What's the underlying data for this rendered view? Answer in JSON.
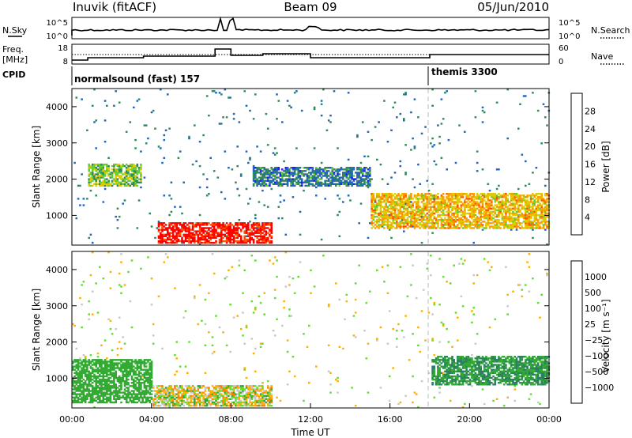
{
  "header": {
    "station": "Inuvik (fitACF)",
    "beam": "Beam 09",
    "date": "05/Jun/2010"
  },
  "top_panels": {
    "nsky_label": "N.Sky",
    "nsearch_label": "N.Search",
    "freq_label_1": "Freq.",
    "freq_label_2": "[MHz]",
    "nave_label": "Nave",
    "cpid_label": "CPID",
    "nsky_ticks": [
      "10^5",
      "10^0"
    ],
    "nsearch_ticks": [
      "10^5",
      "10^0"
    ],
    "freq_ticks": [
      "18",
      "8"
    ],
    "nave_ticks": [
      "60",
      "0"
    ],
    "cpid_segments": [
      {
        "name": "normalsound (fast) 157",
        "start_hour": 0
      },
      {
        "name": "themis 3300",
        "start_hour": 18
      }
    ]
  },
  "chart_data": [
    {
      "type": "heatmap",
      "quantity": "Power",
      "xlabel": "",
      "ylabel": "Slant Range [km]",
      "xlim": [
        0,
        24
      ],
      "ylim": [
        180,
        4500
      ],
      "yticks": [
        "1000",
        "2000",
        "3000",
        "4000"
      ],
      "colorbar": {
        "label": "Power [dB]",
        "ticks": [
          "4",
          "8",
          "12",
          "16",
          "20",
          "24",
          "28"
        ],
        "colors": [
          "#1a1aff",
          "#2266bb",
          "#2e8b57",
          "#66cc33",
          "#ddcc00",
          "#ff9900",
          "#ff5500",
          "#ff0000"
        ]
      },
      "dominant_features": [
        {
          "description": "strong near-range echo",
          "start_hour": 4.3,
          "end_hour": 10,
          "range_km": [
            200,
            800
          ],
          "power_db": 30
        },
        {
          "description": "band",
          "start_hour": 0.8,
          "end_hour": 3.5,
          "range_km": [
            1800,
            2400
          ],
          "power_db": 14
        },
        {
          "description": "band",
          "start_hour": 9,
          "end_hour": 15,
          "range_km": [
            1800,
            2300
          ],
          "power_db": 8
        },
        {
          "description": "band",
          "start_hour": 15,
          "end_hour": 24,
          "range_km": [
            600,
            1600
          ],
          "power_db": 20
        }
      ]
    },
    {
      "type": "heatmap",
      "quantity": "Velocity",
      "xlabel": "Time UT",
      "ylabel": "Slant Range [km]",
      "xlim": [
        0,
        24
      ],
      "ylim": [
        180,
        4500
      ],
      "xticks": [
        "00:00",
        "04:00",
        "08:00",
        "12:00",
        "16:00",
        "20:00",
        "00:00"
      ],
      "yticks": [
        "1000",
        "2000",
        "3000",
        "4000"
      ],
      "colorbar": {
        "label": "Velocity [m s⁻¹]",
        "ticks": [
          "1000",
          "500",
          "100",
          "25",
          "−25",
          "−100",
          "−500",
          "−1000"
        ],
        "colors": [
          "#1a3fd0",
          "#2a8060",
          "#33aa33",
          "#66dd33",
          "#c8c8c8",
          "#ffb000",
          "#ff8000",
          "#ff5000",
          "#ff0000"
        ]
      },
      "dominant_features": [
        {
          "description": "ground scatter",
          "start_hour": 4,
          "end_hour": 10,
          "range_km": [
            200,
            800
          ],
          "velocity_ms": 0
        },
        {
          "description": "negative velocity",
          "start_hour": 0,
          "end_hour": 4,
          "range_km": [
            300,
            1500
          ],
          "velocity_ms": -300
        },
        {
          "description": "negative velocity",
          "start_hour": 18,
          "end_hour": 24,
          "range_km": [
            800,
            1600
          ],
          "velocity_ms": -500
        }
      ]
    }
  ]
}
